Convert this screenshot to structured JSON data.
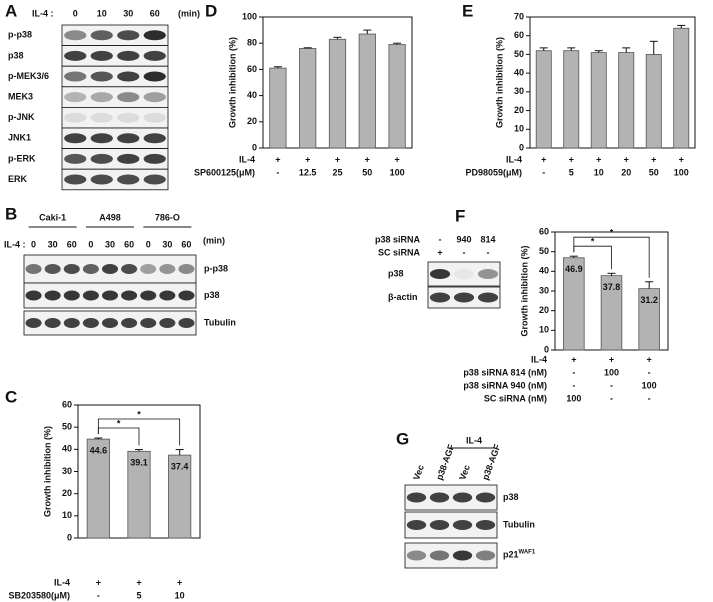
{
  "chart_data": [
    {
      "type": "bar",
      "panel": "C",
      "y_label": "Growth inhibition (%)",
      "values": [
        44.6,
        39.1,
        37.4
      ],
      "errors": [
        0.5,
        0.8,
        2.5
      ],
      "show_values": true,
      "color": "#b3b3b3",
      "ylim": [
        0,
        60
      ],
      "yticks": [
        0,
        10,
        20,
        30,
        40,
        50,
        60
      ],
      "significance": [
        "*",
        "*"
      ],
      "conditions": [
        {
          "label": "IL-4",
          "cells": [
            "+",
            "+",
            "+"
          ]
        },
        {
          "label": "SB203580(μM)",
          "cells": [
            "-",
            "5",
            "10"
          ]
        }
      ]
    },
    {
      "type": "bar",
      "panel": "D",
      "y_label": "Growth inhibition (%)",
      "values": [
        61,
        76,
        83,
        87,
        79
      ],
      "errors": [
        1,
        0.5,
        1.5,
        3,
        1
      ],
      "show_values": false,
      "color": "#b3b3b3",
      "ylim": [
        0,
        100
      ],
      "yticks": [
        0,
        20,
        40,
        60,
        80,
        100
      ],
      "significance": [],
      "conditions": [
        {
          "label": "IL-4",
          "cells": [
            "+",
            "+",
            "+",
            "+",
            "+"
          ]
        },
        {
          "label": "SP600125(μM)",
          "cells": [
            "-",
            "12.5",
            "25",
            "50",
            "100"
          ]
        }
      ]
    },
    {
      "type": "bar",
      "panel": "E",
      "y_label": "Growth inhibition (%)",
      "values": [
        52,
        52,
        51,
        51,
        50,
        64
      ],
      "errors": [
        1.5,
        1.5,
        1,
        2.5,
        7,
        1.5
      ],
      "show_values": false,
      "color": "#b3b3b3",
      "ylim": [
        0,
        70
      ],
      "yticks": [
        0,
        10,
        20,
        30,
        40,
        50,
        60,
        70
      ],
      "significance": [],
      "conditions": [
        {
          "label": "IL-4",
          "cells": [
            "+",
            "+",
            "+",
            "+",
            "+",
            "+"
          ]
        },
        {
          "label": "PD98059(μM)",
          "cells": [
            "-",
            "5",
            "10",
            "20",
            "50",
            "100"
          ]
        }
      ]
    },
    {
      "type": "bar",
      "panel": "F",
      "y_label": "Growth inhibition (%)",
      "values": [
        46.9,
        37.8,
        31.2
      ],
      "errors": [
        0.8,
        1.2,
        3.5
      ],
      "show_values": true,
      "color": "#b3b3b3",
      "ylim": [
        0,
        60
      ],
      "yticks": [
        0,
        10,
        20,
        30,
        40,
        50,
        60
      ],
      "significance": [
        "*",
        "*"
      ],
      "conditions": [
        {
          "label": "IL-4",
          "cells": [
            "+",
            "+",
            "+"
          ]
        },
        {
          "label": "p38 siRNA 814 (nM)",
          "cells": [
            "-",
            "100",
            "-"
          ]
        },
        {
          "label": "p38 siRNA 940 (nM)",
          "cells": [
            "-",
            "-",
            "100"
          ]
        },
        {
          "label": "SC siRNA  (nM)",
          "cells": [
            "100",
            "-",
            "-"
          ]
        }
      ]
    }
  ],
  "blots": {
    "A": {
      "panel": "A",
      "header_label": "IL-4 :",
      "lanes": [
        "0",
        "10",
        "30",
        "60"
      ],
      "unit": "(min)",
      "bands": [
        "p-p38",
        "p38",
        "p-MEK3/6",
        "MEK3",
        "p-JNK",
        "JNK1",
        "p-ERK",
        "ERK"
      ]
    },
    "B": {
      "panel": "B",
      "groups": [
        "Caki-1",
        "A498",
        "786-O"
      ],
      "header_label": "IL-4 :",
      "lanes": [
        "0",
        "30",
        "60",
        "0",
        "30",
        "60",
        "0",
        "30",
        "60"
      ],
      "unit": "(min)",
      "bands": [
        "p-p38",
        "p38",
        "Tubulin"
      ]
    },
    "F": {
      "rows": [
        {
          "label": "p38 siRNA",
          "cells": [
            "-",
            "940",
            "814"
          ]
        },
        {
          "label": "SC siRNA",
          "cells": [
            "+",
            "-",
            "-"
          ]
        }
      ],
      "bands": [
        "p38",
        "β-actin"
      ]
    },
    "G": {
      "panel": "G",
      "lanes": [
        "Vec",
        "p38-AGF",
        "Vec",
        "p38-AGF"
      ],
      "treatment": "IL-4",
      "bands": [
        "p38",
        "Tubulin",
        {
          "name": "p21",
          "superscript": "WAF1"
        }
      ]
    }
  }
}
